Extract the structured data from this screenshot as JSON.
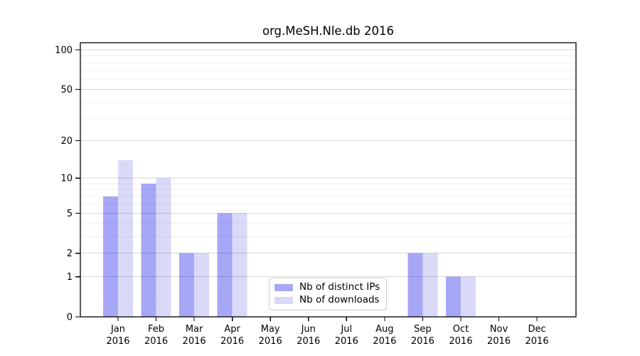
{
  "chart_data": {
    "type": "bar",
    "title": "org.MeSH.Nle.db 2016",
    "months": [
      "Jan",
      "Feb",
      "Mar",
      "Apr",
      "May",
      "Jun",
      "Jul",
      "Aug",
      "Sep",
      "Oct",
      "Nov",
      "Dec"
    ],
    "year": "2016",
    "series": [
      {
        "name": "Nb of distinct IPs",
        "color": "#a7a7f7",
        "values": [
          7,
          9,
          2,
          5,
          0,
          0,
          0,
          0,
          2,
          1,
          0,
          0
        ]
      },
      {
        "name": "Nb of downloads",
        "color": "#dadaf8",
        "values": [
          14,
          10,
          2,
          5,
          0,
          0,
          0,
          0,
          2,
          1,
          0,
          0
        ]
      }
    ],
    "y_scale": "log1p",
    "ylim": [
      0,
      100
    ],
    "y_ticks": [
      0,
      1,
      2,
      5,
      10,
      20,
      50,
      100
    ],
    "y_minor_gridlines": [
      3,
      4,
      6,
      7,
      8,
      9,
      30,
      40,
      60,
      70,
      80,
      90
    ],
    "grid": true,
    "legend_position": "bottom-center",
    "colors": {
      "axis": "#000000",
      "major_grid": "rgba(0,0,0,0.16)",
      "minor_grid": "rgba(0,0,0,0.055)",
      "text": "#000000"
    }
  }
}
